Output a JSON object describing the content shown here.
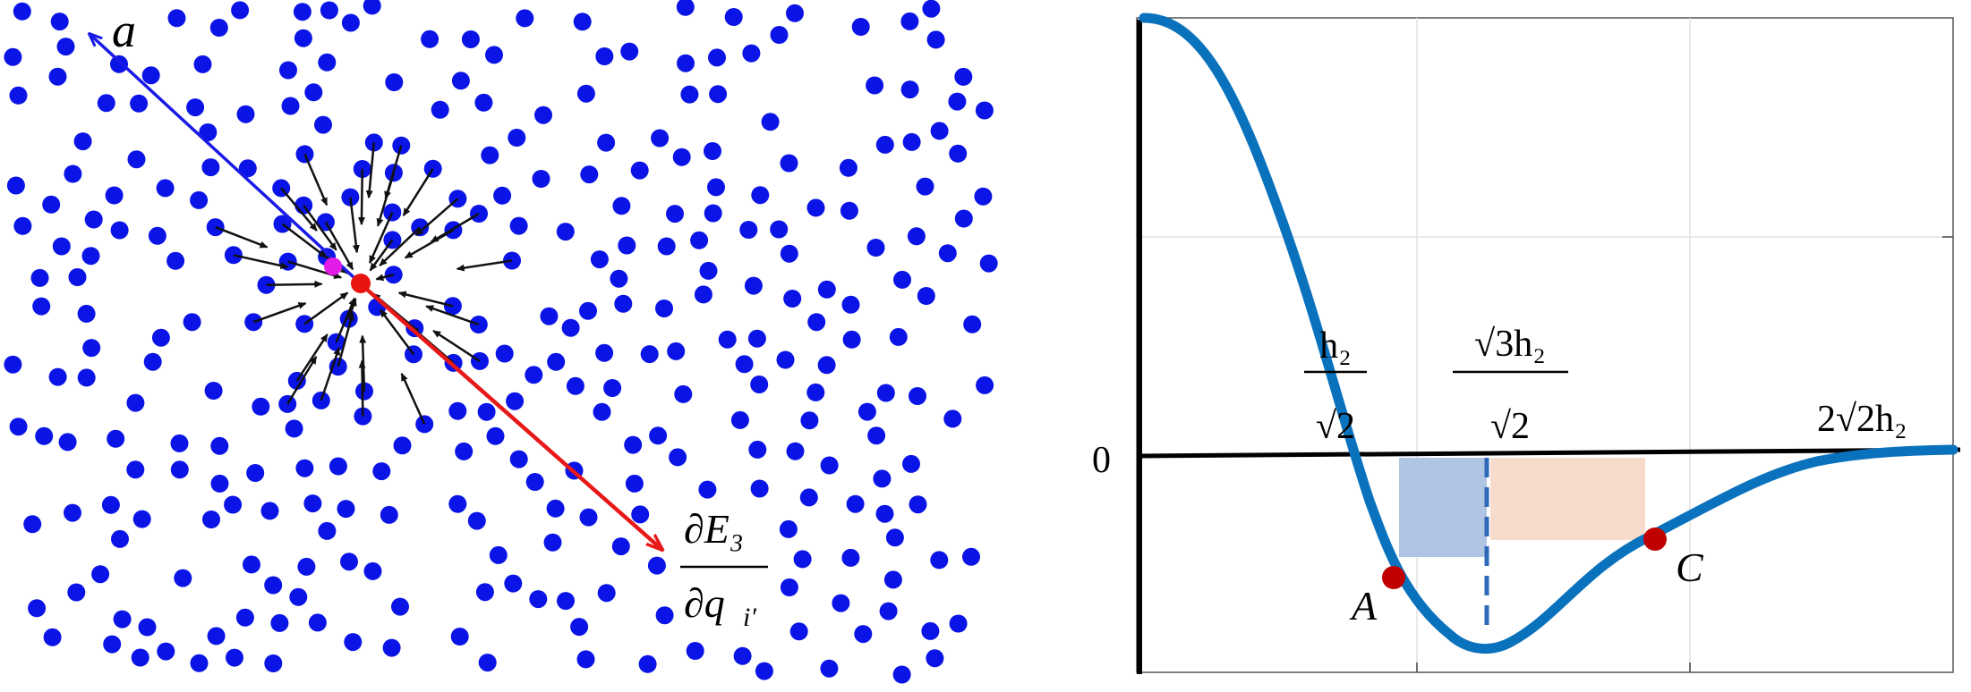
{
  "left_panel": {
    "labels": {
      "a": "a",
      "gradient_num": "∂E₃",
      "gradient_den": "∂q",
      "gradient_den_sub": "i′"
    },
    "colors": {
      "particle": "#0a14e6",
      "selected_particle": "#e81410",
      "neighbor_highlight": "#e21ce6",
      "force_arrow": "#111111",
      "direction_a": "#1a1ae6",
      "gradient_arrow": "#e81818"
    }
  },
  "right_panel": {
    "zero_label": "0",
    "tick_h2_sqrt2": {
      "num": "h₂",
      "den": "√2"
    },
    "tick_sqrt3_h2_sqrt2": {
      "num": "√3h₂",
      "den": "√2"
    },
    "tick_2sqrt2_h2": "2√2h₂",
    "point_A": "A",
    "point_C": "C",
    "colors": {
      "curve": "#0a72bd",
      "points": "#c00000",
      "blue_box": "#b0c4e4",
      "orange_box": "#f8dccb",
      "dashed_line": "#2f6ab8",
      "axis": "#000000"
    }
  }
}
